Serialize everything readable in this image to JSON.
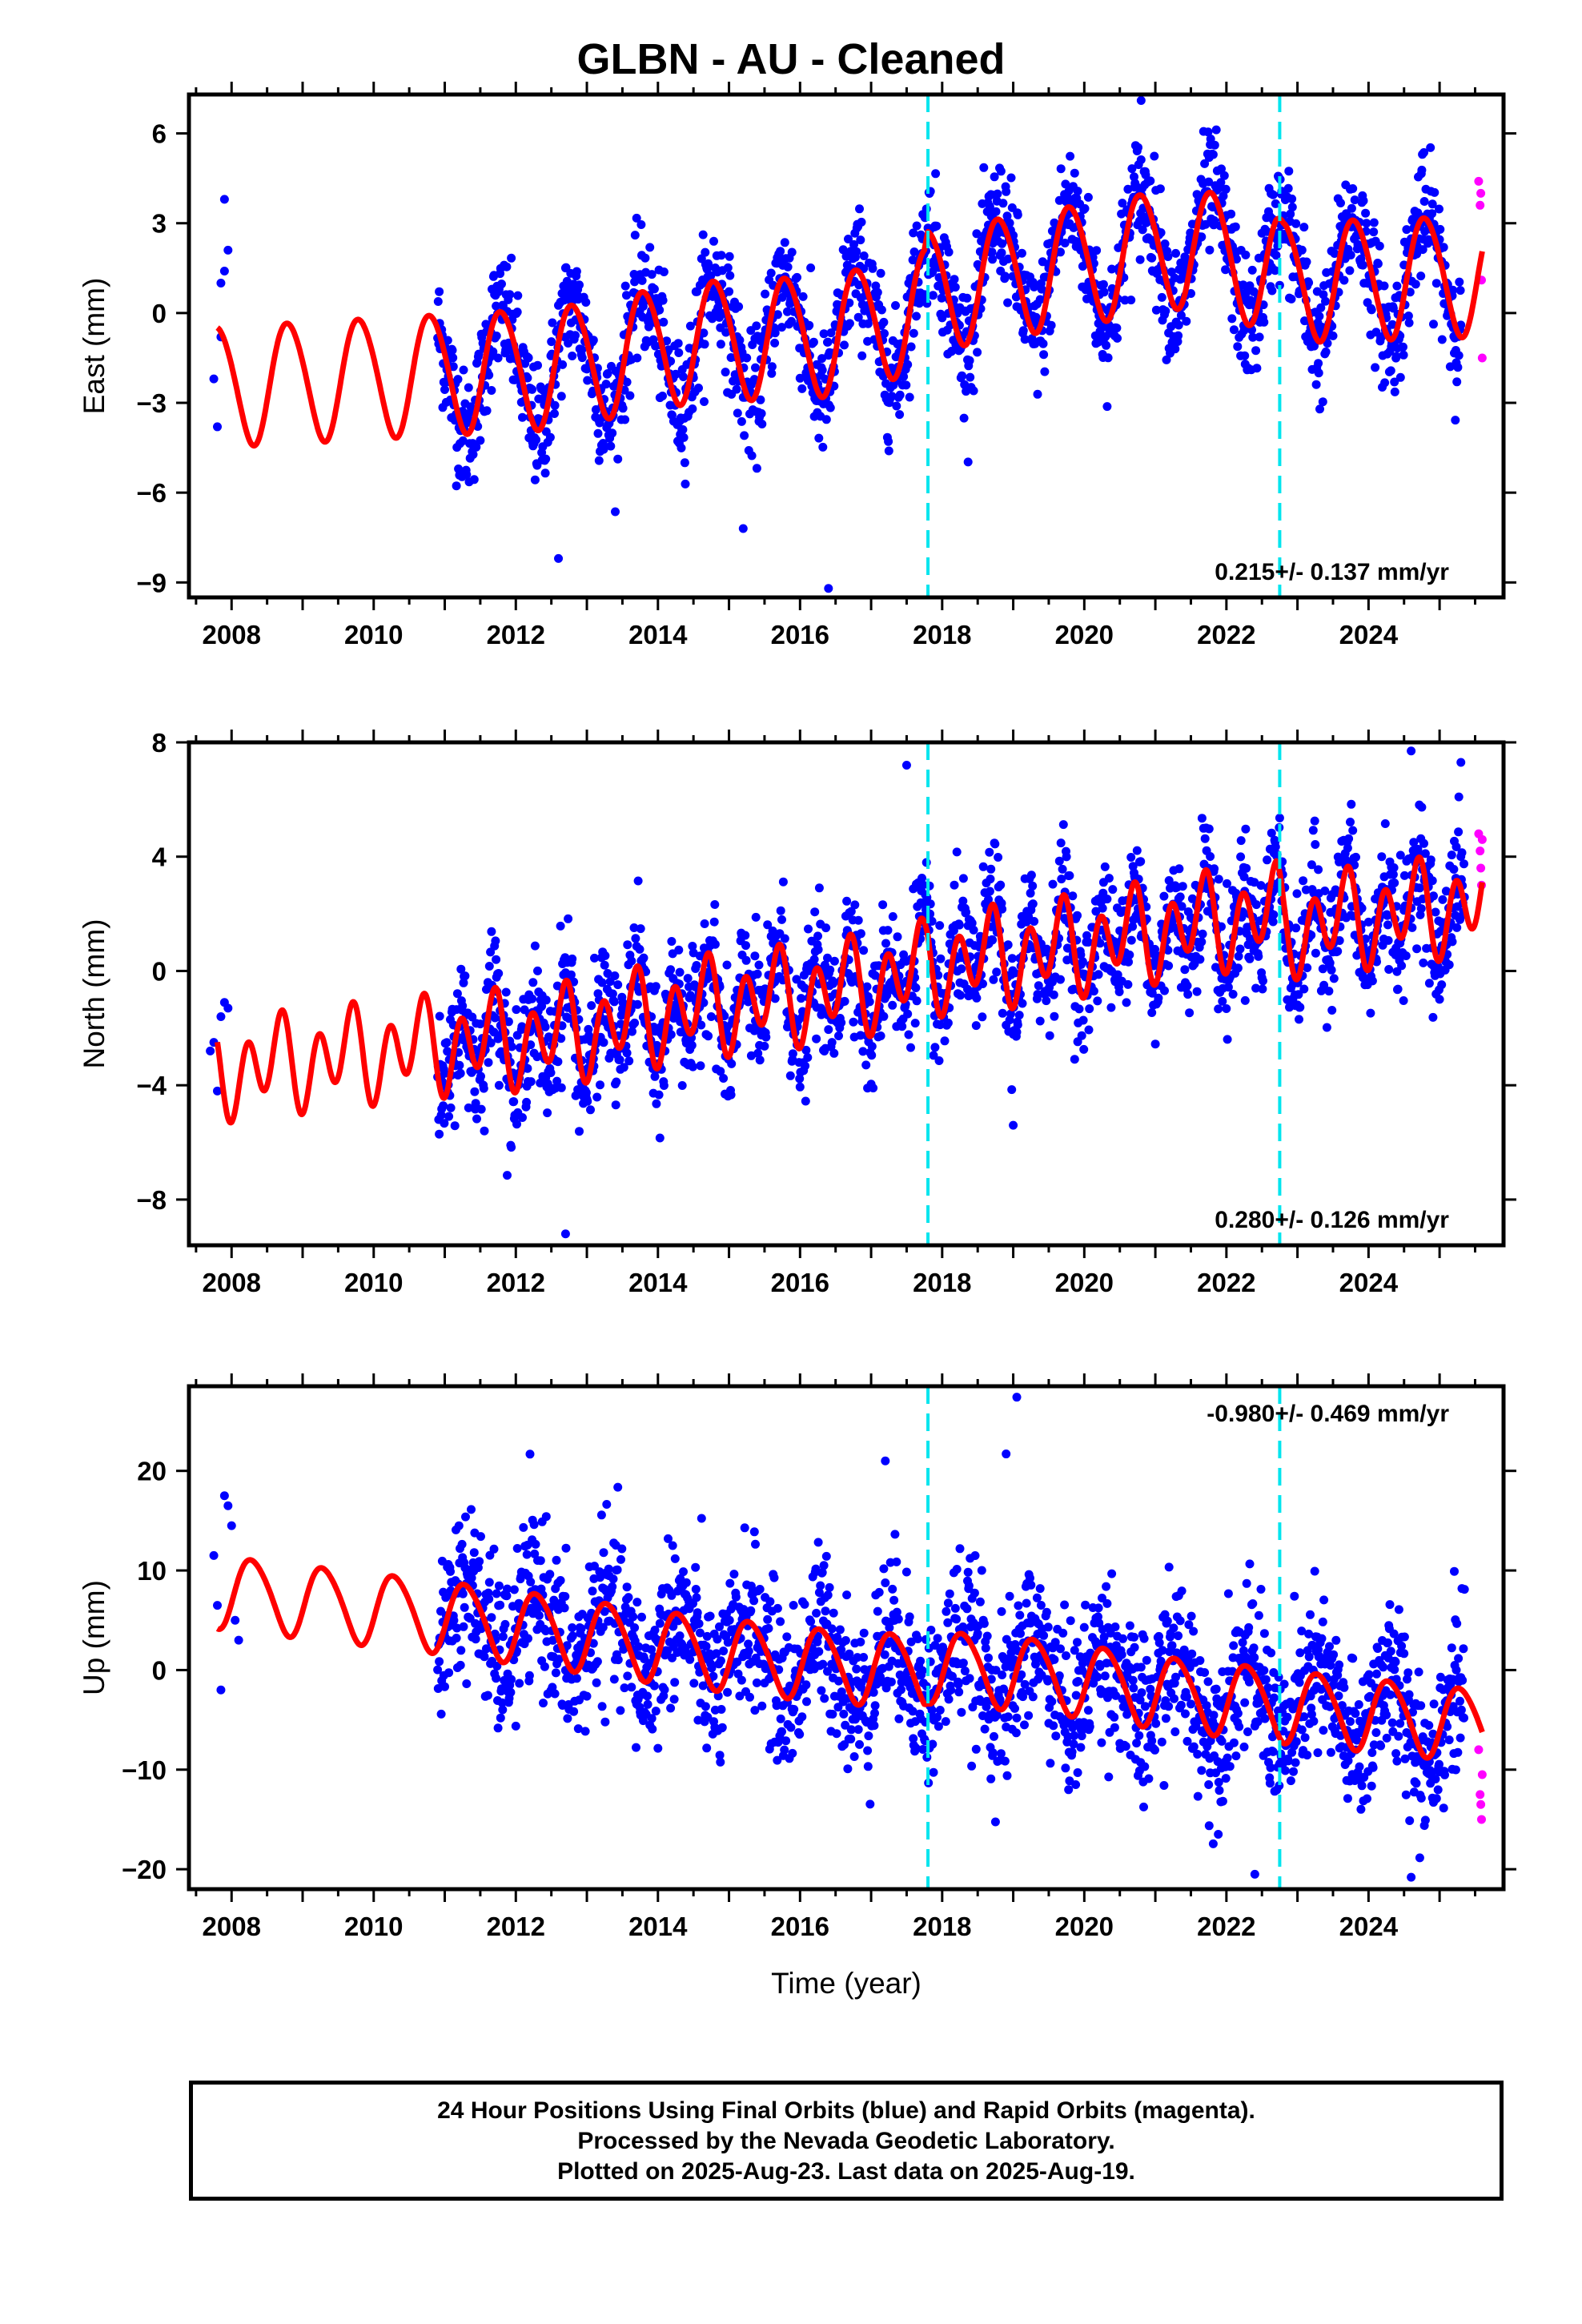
{
  "title": "GLBN  - AU - Cleaned",
  "caption": {
    "lines": [
      "24 Hour Positions Using Final Orbits (blue) and Rapid Orbits (magenta).",
      "Processed by the Nevada Geodetic Laboratory.",
      "Plotted on 2025-Aug-23. Last data on 2025-Aug-19."
    ]
  },
  "colors": {
    "final_orbits": "#0000ff",
    "rapid_orbits": "#ff00ff",
    "model_fit": "#ff0000",
    "equipment_change": "#00e5ee"
  },
  "chart_data": [
    {
      "type": "scatter",
      "ylabel": "East (mm)",
      "xlabel": "",
      "rate_label": "0.215+/- 0.137 mm/yr",
      "xlim": [
        2007.4,
        2025.9
      ],
      "ylim": [
        -9.5,
        7.3
      ],
      "xticks": [
        2008,
        2010,
        2012,
        2014,
        2016,
        2018,
        2020,
        2022,
        2024
      ],
      "xtick_labels": [
        "2008",
        "2010",
        "2012",
        "2014",
        "2016",
        "2018",
        "2020",
        "2022",
        "2024"
      ],
      "yticks": [
        6,
        3,
        0,
        -3,
        -6,
        -9
      ],
      "ytick_labels": [
        "6",
        "3",
        "0",
        "−3",
        "−6",
        "−9"
      ],
      "equipment_changes": [
        2017.8,
        2022.75
      ],
      "data_start": 2010.9,
      "data_end": 2025.3,
      "early_points": [
        [
          2007.75,
          -2.2
        ],
        [
          2007.8,
          -3.8
        ],
        [
          2007.85,
          1.0
        ],
        [
          2007.9,
          3.8
        ],
        [
          2007.95,
          2.1
        ],
        [
          2007.85,
          -0.8
        ],
        [
          2007.9,
          1.4
        ]
      ],
      "rapid_points": [
        [
          2025.55,
          4.4
        ],
        [
          2025.57,
          3.6
        ],
        [
          2025.59,
          1.1
        ],
        [
          2025.6,
          -1.5
        ],
        [
          2025.58,
          4.0
        ]
      ],
      "outliers": [
        [
          2012.6,
          -8.2
        ],
        [
          2016.4,
          -9.2
        ],
        [
          2015.2,
          -7.2
        ],
        [
          2020.8,
          7.1
        ]
      ],
      "model": {
        "early_segments": [
          [
            2007.75,
            2010.95
          ]
        ],
        "base_points": [
          [
            2007.8,
            -2.4
          ],
          [
            2010.9,
            -2.0
          ],
          [
            2012.5,
            -1.8
          ],
          [
            2014.5,
            -0.9
          ],
          [
            2016.5,
            -0.7
          ],
          [
            2017.75,
            0.2
          ],
          [
            2017.8,
            0.8
          ],
          [
            2019.5,
            1.5
          ],
          [
            2021.5,
            2.3
          ],
          [
            2022.7,
            1.4
          ],
          [
            2022.8,
            1.1
          ],
          [
            2025.6,
            1.3
          ]
        ],
        "amp1": 2.0,
        "phase1": 0.55,
        "amp2": 0.15,
        "phase2": 0.0
      },
      "scatter_sd": 1.0
    },
    {
      "type": "scatter",
      "ylabel": "North (mm)",
      "xlabel": "",
      "rate_label": "0.280+/- 0.126 mm/yr",
      "xlim": [
        2007.4,
        2025.9
      ],
      "ylim": [
        -9.6,
        8.0
      ],
      "xticks": [
        2008,
        2010,
        2012,
        2014,
        2016,
        2018,
        2020,
        2022,
        2024
      ],
      "xtick_labels": [
        "2008",
        "2010",
        "2012",
        "2014",
        "2016",
        "2018",
        "2020",
        "2022",
        "2024"
      ],
      "yticks": [
        8,
        4,
        0,
        -4,
        -8
      ],
      "ytick_labels": [
        "8",
        "4",
        "0",
        "−4",
        "−8"
      ],
      "equipment_changes": [
        2017.8,
        2022.75
      ],
      "data_start": 2010.9,
      "data_end": 2025.35,
      "early_points": [
        [
          2007.7,
          -2.8
        ],
        [
          2007.75,
          -2.5
        ],
        [
          2007.8,
          -4.2
        ],
        [
          2007.85,
          -1.6
        ],
        [
          2007.9,
          -1.1
        ],
        [
          2007.95,
          -1.3
        ]
      ],
      "rapid_points": [
        [
          2025.55,
          4.8
        ],
        [
          2025.57,
          4.2
        ],
        [
          2025.59,
          3.0
        ],
        [
          2025.6,
          4.6
        ],
        [
          2025.58,
          3.6
        ]
      ],
      "outliers": [
        [
          2012.7,
          -9.2
        ],
        [
          2017.5,
          7.2
        ],
        [
          2024.6,
          7.7
        ],
        [
          2025.3,
          7.3
        ],
        [
          2019.0,
          -5.4
        ]
      ],
      "model": {
        "early_segments": [
          [
            2007.75,
            2010.95
          ]
        ],
        "base_points": [
          [
            2007.8,
            -3.5
          ],
          [
            2010.9,
            -2.6
          ],
          [
            2012.5,
            -2.3
          ],
          [
            2014.5,
            -1.3
          ],
          [
            2016.5,
            -0.7
          ],
          [
            2017.75,
            0.0
          ],
          [
            2017.8,
            0.2
          ],
          [
            2019.5,
            0.7
          ],
          [
            2021.5,
            1.6
          ],
          [
            2022.7,
            2.0
          ],
          [
            2022.8,
            1.5
          ],
          [
            2025.6,
            2.4
          ]
        ],
        "amp1": 0.7,
        "phase1": 0.35,
        "amp2": 1.35,
        "phase2": 0.1
      },
      "scatter_sd": 1.1
    },
    {
      "type": "scatter",
      "ylabel": "Up (mm)",
      "xlabel": "Time (year)",
      "rate_label": "-0.980+/- 0.469 mm/yr",
      "xlim": [
        2007.4,
        2025.9
      ],
      "ylim": [
        -22,
        28.5
      ],
      "xticks": [
        2008,
        2010,
        2012,
        2014,
        2016,
        2018,
        2020,
        2022,
        2024
      ],
      "xtick_labels": [
        "2008",
        "2010",
        "2012",
        "2014",
        "2016",
        "2018",
        "2020",
        "2022",
        "2024"
      ],
      "yticks": [
        20,
        10,
        0,
        -10,
        -20
      ],
      "ytick_labels": [
        "20",
        "10",
        "0",
        "−10",
        "−20"
      ],
      "equipment_changes": [
        2017.8,
        2022.75
      ],
      "data_start": 2010.9,
      "data_end": 2025.35,
      "early_points": [
        [
          2007.75,
          11.5
        ],
        [
          2007.8,
          6.5
        ],
        [
          2007.85,
          -2.0
        ],
        [
          2007.9,
          17.5
        ],
        [
          2007.95,
          16.5
        ],
        [
          2008.0,
          14.5
        ],
        [
          2008.05,
          5.0
        ],
        [
          2008.1,
          3.0
        ]
      ],
      "rapid_points": [
        [
          2025.55,
          -8.0
        ],
        [
          2025.57,
          -12.5
        ],
        [
          2025.59,
          -15.0
        ],
        [
          2025.6,
          -10.5
        ],
        [
          2025.58,
          -13.5
        ]
      ],
      "outliers": [
        [
          2019.05,
          27.4
        ],
        [
          2018.9,
          21.7
        ],
        [
          2017.2,
          21.0
        ],
        [
          2022.4,
          -20.5
        ],
        [
          2024.6,
          -20.8
        ]
      ],
      "model": {
        "early_segments": [
          [
            2007.75,
            2010.95
          ]
        ],
        "base_points": [
          [
            2007.8,
            8.0
          ],
          [
            2010.9,
            5.5
          ],
          [
            2012.5,
            4.0
          ],
          [
            2014.5,
            2.0
          ],
          [
            2016.5,
            0.5
          ],
          [
            2017.75,
            0.0
          ],
          [
            2017.8,
            0.5
          ],
          [
            2019.5,
            -0.5
          ],
          [
            2021.5,
            -2.5
          ],
          [
            2022.7,
            -3.3
          ],
          [
            2022.8,
            -3.5
          ],
          [
            2025.6,
            -5.5
          ]
        ],
        "amp1": 3.6,
        "phase1": 0.05,
        "amp2": 0.4,
        "phase2": 0.0
      },
      "scatter_sd": 4.0
    }
  ]
}
